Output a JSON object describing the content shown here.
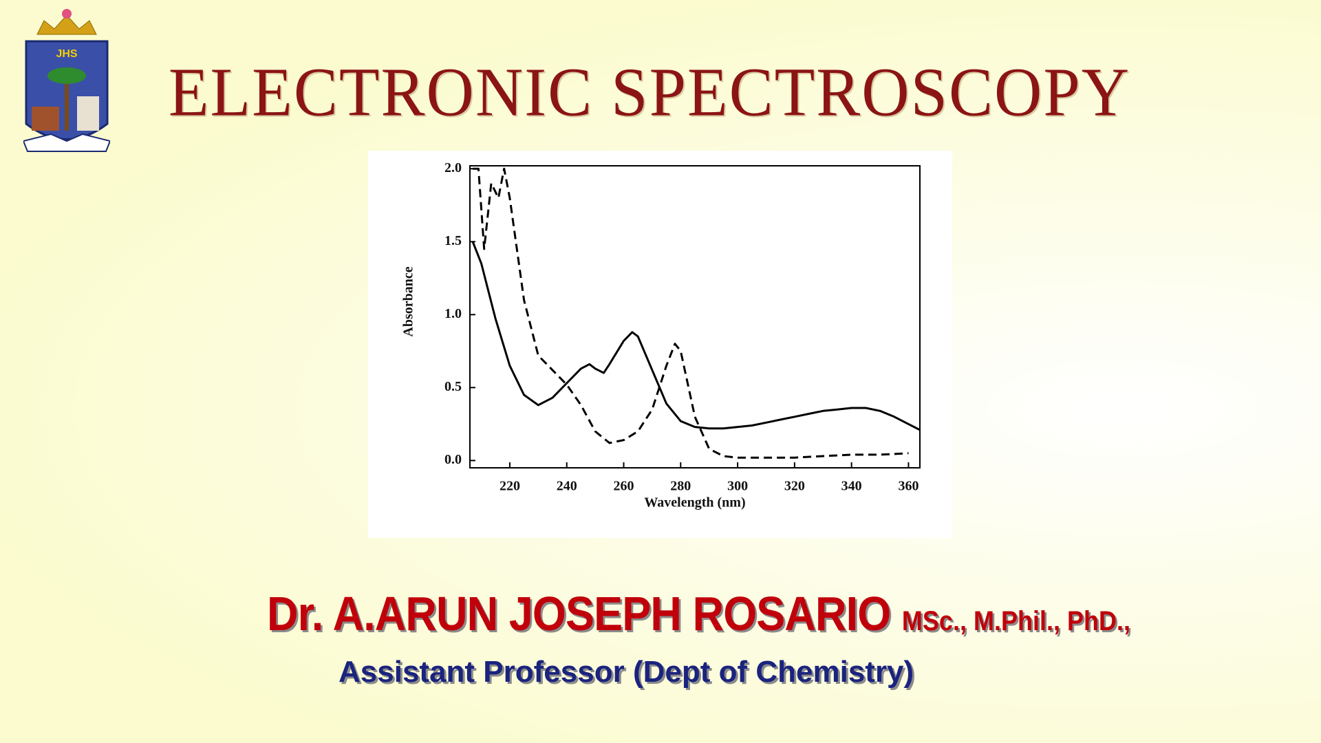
{
  "slide": {
    "title": "ELECTRONIC SPECTROSCOPY",
    "logo_text": "JHS",
    "author": "Dr. A.ARUN JOSEPH ROSARIO",
    "degrees": "MSc., M.Phil., PhD.,",
    "position": "Assistant Professor",
    "department": "(Dept of Chemistry)"
  },
  "chart_data": {
    "type": "line",
    "x_label": "Wavelength (nm)",
    "y_label": "Absorbance",
    "xlim": [
      206,
      364
    ],
    "ylim": [
      -0.05,
      2.02
    ],
    "xticks": [
      220,
      240,
      260,
      280,
      300,
      320,
      340,
      360
    ],
    "yticks": [
      {
        "value": 0,
        "label": "0.0"
      },
      {
        "value": 0.5,
        "label": "0.5"
      },
      {
        "value": 1,
        "label": "1.0"
      },
      {
        "value": 1.5,
        "label": "1.5"
      },
      {
        "value": 2,
        "label": "2.0"
      }
    ],
    "grid": false,
    "series": [
      {
        "color": "#000000",
        "dash": false,
        "x": [
          207,
          210,
          215,
          220,
          225,
          230,
          235,
          240,
          245,
          248,
          250,
          253,
          255,
          260,
          263,
          265,
          270,
          275,
          280,
          285,
          290,
          295,
          300,
          305,
          310,
          315,
          320,
          325,
          330,
          335,
          340,
          345,
          350,
          355,
          360,
          364
        ],
        "values": [
          1.5,
          1.35,
          0.97,
          0.65,
          0.45,
          0.38,
          0.43,
          0.53,
          0.63,
          0.66,
          0.63,
          0.6,
          0.66,
          0.82,
          0.88,
          0.85,
          0.62,
          0.39,
          0.27,
          0.23,
          0.22,
          0.22,
          0.23,
          0.24,
          0.26,
          0.28,
          0.3,
          0.32,
          0.34,
          0.35,
          0.36,
          0.36,
          0.34,
          0.3,
          0.25,
          0.21
        ]
      },
      {
        "color": "#000000",
        "dash": true,
        "x": [
          207,
          209,
          211,
          213.5,
          216,
          218,
          220,
          225,
          230,
          235,
          240,
          245,
          250,
          255,
          260,
          265,
          270,
          275,
          278,
          280,
          285,
          290,
          295,
          300,
          310,
          320,
          330,
          340,
          350,
          360
        ],
        "values": [
          2.0,
          2.0,
          1.45,
          1.9,
          1.8,
          2.0,
          1.8,
          1.1,
          0.72,
          0.62,
          0.52,
          0.38,
          0.2,
          0.12,
          0.14,
          0.2,
          0.35,
          0.65,
          0.8,
          0.75,
          0.3,
          0.08,
          0.03,
          0.02,
          0.02,
          0.02,
          0.03,
          0.04,
          0.04,
          0.05
        ]
      }
    ]
  }
}
